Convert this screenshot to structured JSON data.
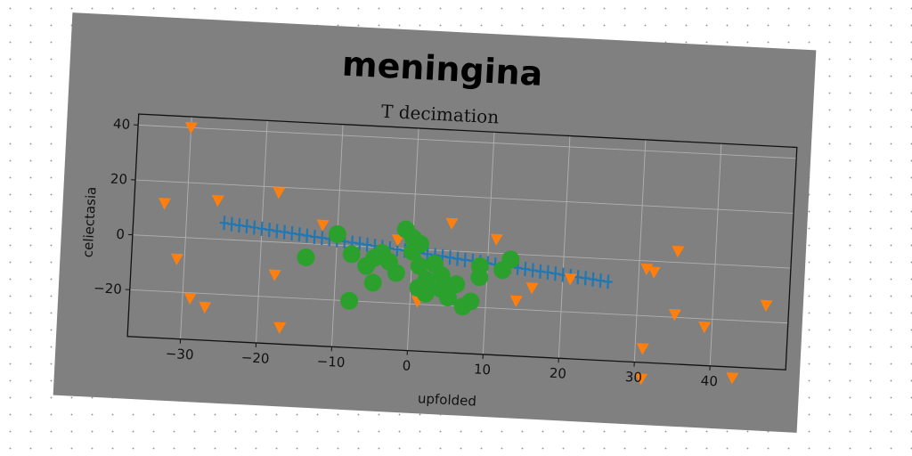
{
  "chart_data": {
    "type": "scatter",
    "title": "meningina",
    "subtitle": "T decimation",
    "xlabel": "upfolded",
    "ylabel": "celiectasia",
    "xlim": [
      -37,
      50
    ],
    "ylim": [
      -37,
      44
    ],
    "xticks": [
      -30,
      -20,
      -10,
      0,
      10,
      20,
      30,
      40
    ],
    "yticks": [
      -20,
      0,
      20,
      40
    ],
    "grid": true,
    "background_color": "#808080",
    "series": [
      {
        "marker": "plus",
        "color": "#1f77b4",
        "points": [
          [
            -25,
            6.0
          ],
          [
            -24,
            5.7
          ],
          [
            -23,
            5.4
          ],
          [
            -22,
            5.2
          ],
          [
            -21,
            4.9
          ],
          [
            -20,
            4.6
          ],
          [
            -19,
            4.3
          ],
          [
            -18,
            4.0
          ],
          [
            -17,
            3.8
          ],
          [
            -16,
            3.5
          ],
          [
            -15,
            3.2
          ],
          [
            -14,
            2.9
          ],
          [
            -13,
            2.6
          ],
          [
            -12,
            2.4
          ],
          [
            -11,
            2.1
          ],
          [
            -10,
            1.8
          ],
          [
            -9,
            1.5
          ],
          [
            -8,
            1.2
          ],
          [
            -7,
            1.0
          ],
          [
            -6,
            0.7
          ],
          [
            -5,
            0.4
          ],
          [
            -4,
            0.1
          ],
          [
            -3,
            -0.2
          ],
          [
            -2,
            -0.4
          ],
          [
            -1,
            -0.7
          ],
          [
            0,
            -1.0
          ],
          [
            1,
            -1.3
          ],
          [
            2,
            -1.6
          ],
          [
            3,
            -1.8
          ],
          [
            4,
            -2.1
          ],
          [
            5,
            -2.4
          ],
          [
            6,
            -2.7
          ],
          [
            7,
            -3.0
          ],
          [
            8,
            -3.2
          ],
          [
            9,
            -3.5
          ],
          [
            10,
            -3.8
          ],
          [
            11,
            -4.1
          ],
          [
            12,
            -4.4
          ],
          [
            13,
            -4.6
          ],
          [
            14,
            -4.9
          ],
          [
            15,
            -5.2
          ],
          [
            16,
            -5.5
          ],
          [
            17,
            -5.8
          ],
          [
            18,
            -6.0
          ],
          [
            19,
            -6.3
          ],
          [
            20,
            -6.6
          ],
          [
            21,
            -6.9
          ],
          [
            22,
            -7.2
          ],
          [
            23,
            -7.4
          ],
          [
            24,
            -7.7
          ],
          [
            25,
            -8.0
          ],
          [
            26,
            -8.3
          ]
        ]
      },
      {
        "marker": "triangle-down",
        "color": "#ff7f0e",
        "points": [
          [
            -30,
            40
          ],
          [
            -33,
            12
          ],
          [
            -26,
            14
          ],
          [
            -18,
            18
          ],
          [
            -31,
            -8
          ],
          [
            -29,
            -22
          ],
          [
            -27,
            -25
          ],
          [
            -18,
            -12
          ],
          [
            -17,
            -31
          ],
          [
            -12,
            7
          ],
          [
            -2,
            3
          ],
          [
            1,
            -19
          ],
          [
            5,
            10
          ],
          [
            11,
            5
          ],
          [
            14,
            -17
          ],
          [
            16,
            -12
          ],
          [
            21,
            -8
          ],
          [
            31,
            -3
          ],
          [
            32,
            -4
          ],
          [
            31,
            -32
          ],
          [
            31,
            -43
          ],
          [
            35,
            4
          ],
          [
            35,
            -19
          ],
          [
            39,
            -23
          ],
          [
            43,
            -41
          ],
          [
            47,
            -14
          ]
        ]
      },
      {
        "marker": "circle",
        "color": "#2ca02c",
        "points": [
          [
            -14,
            -5
          ],
          [
            -10,
            4
          ],
          [
            -8,
            -3
          ],
          [
            -6,
            -7
          ],
          [
            -5,
            -4
          ],
          [
            -4,
            -2
          ],
          [
            -5,
            -13
          ],
          [
            -3,
            -5
          ],
          [
            -2,
            -9
          ],
          [
            -1,
            7
          ],
          [
            0,
            4
          ],
          [
            0,
            -1
          ],
          [
            1,
            2
          ],
          [
            1,
            -6
          ],
          [
            1,
            -14
          ],
          [
            2,
            -11
          ],
          [
            3,
            -5
          ],
          [
            4,
            -9
          ],
          [
            4,
            -14
          ],
          [
            5,
            -17
          ],
          [
            6,
            -12
          ],
          [
            7,
            -20
          ],
          [
            8,
            -18
          ],
          [
            9,
            -5
          ],
          [
            9,
            -9
          ],
          [
            12,
            -6
          ],
          [
            13,
            -2
          ],
          [
            -8,
            -20
          ],
          [
            2,
            -16
          ]
        ]
      }
    ]
  }
}
